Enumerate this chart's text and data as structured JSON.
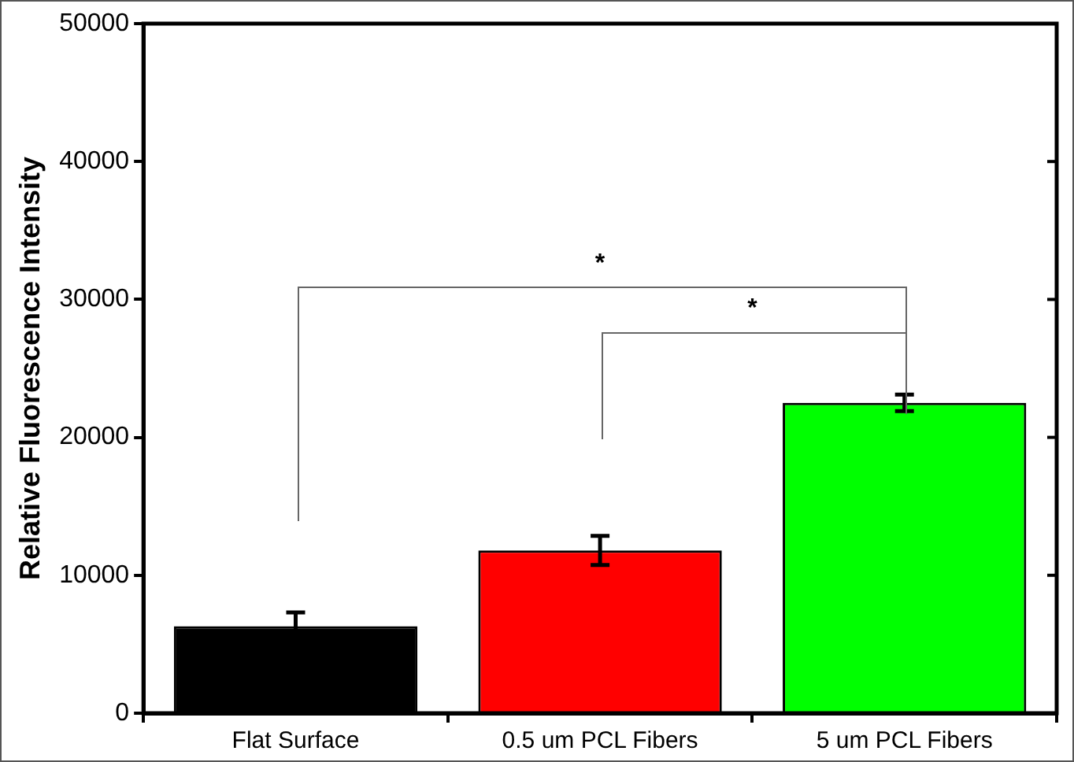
{
  "chart_data": {
    "type": "bar",
    "ylabel": "Relative Fluorescence Intensity",
    "categories": [
      "Flat Surface",
      "0.5 um PCL Fibers",
      "5 um PCL Fibers"
    ],
    "values": [
      6300,
      11800,
      22500
    ],
    "colors": [
      "#000000",
      "#ff0000",
      "#00ff00"
    ],
    "errors": [
      1000,
      1050,
      600
    ],
    "ylim": [
      0,
      50000
    ],
    "yticks": [
      0,
      10000,
      20000,
      30000,
      40000,
      50000
    ],
    "grid": false,
    "legend": false,
    "annotations": [
      "*",
      "*"
    ]
  }
}
